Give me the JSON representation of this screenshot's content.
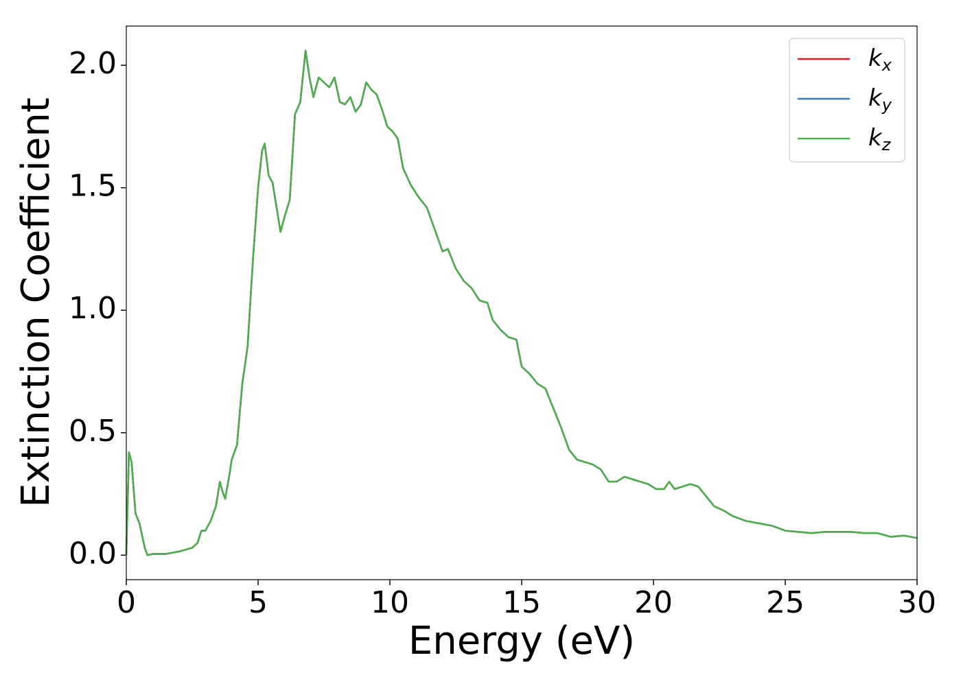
{
  "chart_data": {
    "type": "line",
    "xlabel": "Energy (eV)",
    "ylabel": "Extinction Coefficient",
    "x": [
      0,
      0.1,
      0.2,
      0.35,
      0.5,
      0.7,
      0.8,
      1.0,
      1.5,
      2.0,
      2.5,
      2.7,
      2.85,
      3.0,
      3.2,
      3.4,
      3.55,
      3.65,
      3.75,
      3.9,
      4.0,
      4.2,
      4.4,
      4.6,
      4.8,
      5.0,
      5.15,
      5.25,
      5.4,
      5.55,
      5.7,
      5.85,
      6.0,
      6.2,
      6.4,
      6.6,
      6.8,
      6.95,
      7.1,
      7.3,
      7.5,
      7.7,
      7.9,
      8.1,
      8.3,
      8.5,
      8.7,
      8.9,
      9.1,
      9.3,
      9.5,
      9.7,
      9.9,
      10.1,
      10.3,
      10.5,
      10.8,
      11.1,
      11.4,
      11.7,
      12.0,
      12.2,
      12.5,
      12.8,
      13.1,
      13.4,
      13.7,
      13.9,
      14.2,
      14.5,
      14.8,
      15.0,
      15.3,
      15.6,
      15.9,
      16.2,
      16.5,
      16.8,
      17.1,
      17.4,
      17.7,
      18.0,
      18.3,
      18.6,
      18.9,
      19.2,
      19.5,
      19.8,
      20.1,
      20.4,
      20.6,
      20.8,
      21.1,
      21.4,
      21.7,
      22.0,
      22.3,
      22.7,
      23.0,
      23.5,
      24.0,
      24.5,
      25.0,
      25.5,
      26.0,
      26.5,
      27.0,
      27.5,
      28.0,
      28.5,
      29.0,
      29.5,
      30.0
    ],
    "series": [
      {
        "name": "kx",
        "color": "#e41a1c",
        "values": [
          0,
          0.42,
          0.38,
          0.17,
          0.13,
          0.03,
          0.0,
          0.005,
          0.005,
          0.015,
          0.03,
          0.05,
          0.1,
          0.1,
          0.14,
          0.2,
          0.3,
          0.26,
          0.23,
          0.32,
          0.39,
          0.45,
          0.7,
          0.85,
          1.2,
          1.5,
          1.65,
          1.68,
          1.55,
          1.52,
          1.42,
          1.32,
          1.38,
          1.45,
          1.8,
          1.85,
          2.06,
          1.95,
          1.87,
          1.95,
          1.93,
          1.91,
          1.95,
          1.85,
          1.84,
          1.87,
          1.81,
          1.84,
          1.93,
          1.9,
          1.88,
          1.82,
          1.75,
          1.73,
          1.7,
          1.58,
          1.51,
          1.46,
          1.42,
          1.33,
          1.24,
          1.25,
          1.17,
          1.12,
          1.09,
          1.04,
          1.03,
          0.96,
          0.92,
          0.89,
          0.88,
          0.77,
          0.74,
          0.7,
          0.68,
          0.6,
          0.52,
          0.43,
          0.39,
          0.38,
          0.37,
          0.35,
          0.3,
          0.3,
          0.32,
          0.31,
          0.3,
          0.29,
          0.27,
          0.27,
          0.3,
          0.27,
          0.28,
          0.29,
          0.28,
          0.24,
          0.2,
          0.18,
          0.16,
          0.14,
          0.13,
          0.12,
          0.1,
          0.095,
          0.09,
          0.095,
          0.095,
          0.095,
          0.09,
          0.09,
          0.075,
          0.08,
          0.07
        ]
      },
      {
        "name": "ky",
        "color": "#377eb8",
        "values": [
          0,
          0.42,
          0.38,
          0.17,
          0.13,
          0.03,
          0.0,
          0.005,
          0.005,
          0.015,
          0.03,
          0.05,
          0.1,
          0.1,
          0.14,
          0.2,
          0.3,
          0.26,
          0.23,
          0.32,
          0.39,
          0.45,
          0.7,
          0.85,
          1.2,
          1.5,
          1.65,
          1.68,
          1.55,
          1.52,
          1.42,
          1.32,
          1.38,
          1.45,
          1.8,
          1.85,
          2.06,
          1.95,
          1.87,
          1.95,
          1.93,
          1.91,
          1.95,
          1.85,
          1.84,
          1.87,
          1.81,
          1.84,
          1.93,
          1.9,
          1.88,
          1.82,
          1.75,
          1.73,
          1.7,
          1.58,
          1.51,
          1.46,
          1.42,
          1.33,
          1.24,
          1.25,
          1.17,
          1.12,
          1.09,
          1.04,
          1.03,
          0.96,
          0.92,
          0.89,
          0.88,
          0.77,
          0.74,
          0.7,
          0.68,
          0.6,
          0.52,
          0.43,
          0.39,
          0.38,
          0.37,
          0.35,
          0.3,
          0.3,
          0.32,
          0.31,
          0.3,
          0.29,
          0.27,
          0.27,
          0.3,
          0.27,
          0.28,
          0.29,
          0.28,
          0.24,
          0.2,
          0.18,
          0.16,
          0.14,
          0.13,
          0.12,
          0.1,
          0.095,
          0.09,
          0.095,
          0.095,
          0.095,
          0.09,
          0.09,
          0.075,
          0.08,
          0.07
        ]
      },
      {
        "name": "kz",
        "color": "#4daf4a",
        "values": [
          0,
          0.42,
          0.38,
          0.17,
          0.13,
          0.03,
          0.0,
          0.005,
          0.005,
          0.015,
          0.03,
          0.05,
          0.1,
          0.1,
          0.14,
          0.2,
          0.3,
          0.26,
          0.23,
          0.32,
          0.39,
          0.45,
          0.7,
          0.85,
          1.2,
          1.5,
          1.65,
          1.68,
          1.55,
          1.52,
          1.42,
          1.32,
          1.38,
          1.45,
          1.8,
          1.85,
          2.06,
          1.95,
          1.87,
          1.95,
          1.93,
          1.91,
          1.95,
          1.85,
          1.84,
          1.87,
          1.81,
          1.84,
          1.93,
          1.9,
          1.88,
          1.82,
          1.75,
          1.73,
          1.7,
          1.58,
          1.51,
          1.46,
          1.42,
          1.33,
          1.24,
          1.25,
          1.17,
          1.12,
          1.09,
          1.04,
          1.03,
          0.96,
          0.92,
          0.89,
          0.88,
          0.77,
          0.74,
          0.7,
          0.68,
          0.6,
          0.52,
          0.43,
          0.39,
          0.38,
          0.37,
          0.35,
          0.3,
          0.3,
          0.32,
          0.31,
          0.3,
          0.29,
          0.27,
          0.27,
          0.3,
          0.27,
          0.28,
          0.29,
          0.28,
          0.24,
          0.2,
          0.18,
          0.16,
          0.14,
          0.13,
          0.12,
          0.1,
          0.095,
          0.09,
          0.095,
          0.095,
          0.095,
          0.09,
          0.09,
          0.075,
          0.08,
          0.07
        ]
      }
    ],
    "xlim": [
      0,
      30
    ],
    "xticks": [
      0,
      5,
      10,
      15,
      20,
      25,
      30
    ],
    "ylim": [
      -0.1,
      2.16
    ],
    "yticks": [
      {
        "value": 0,
        "label": "0.0"
      },
      0.5,
      {
        "value": 1,
        "label": "1.0"
      },
      1.5,
      {
        "value": 2,
        "label": "2.0"
      }
    ],
    "grid": false,
    "legend": "upper right"
  }
}
